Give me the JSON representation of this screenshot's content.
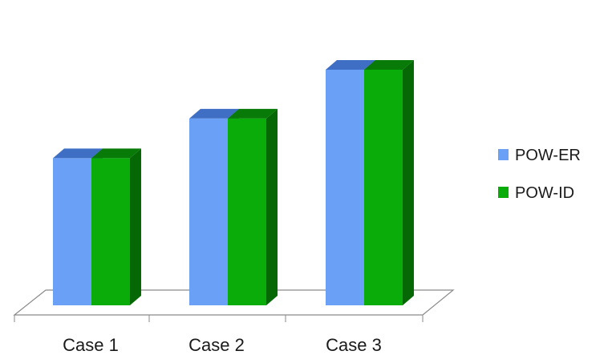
{
  "chart_data": {
    "type": "bar",
    "title": "",
    "xlabel": "",
    "ylabel": "",
    "categories": [
      "Case 1",
      "Case 2",
      "Case 3"
    ],
    "series": [
      {
        "name": "POW-ER",
        "values": [
          226,
          287,
          362
        ]
      },
      {
        "name": "POW-ID",
        "values": [
          226,
          287,
          362
        ]
      }
    ],
    "ylim": [
      0,
      400
    ],
    "grid": false,
    "legend_position": "right",
    "three_d": true,
    "colors": {
      "POW-ER": {
        "front": "#6aa0f5",
        "top": "#3f6fc4",
        "side": "#3a62b0"
      },
      "POW-ID": {
        "front": "#0aac0a",
        "top": "#077a07",
        "side": "#056805"
      },
      "floor_stroke": "#8a8a8a"
    }
  }
}
